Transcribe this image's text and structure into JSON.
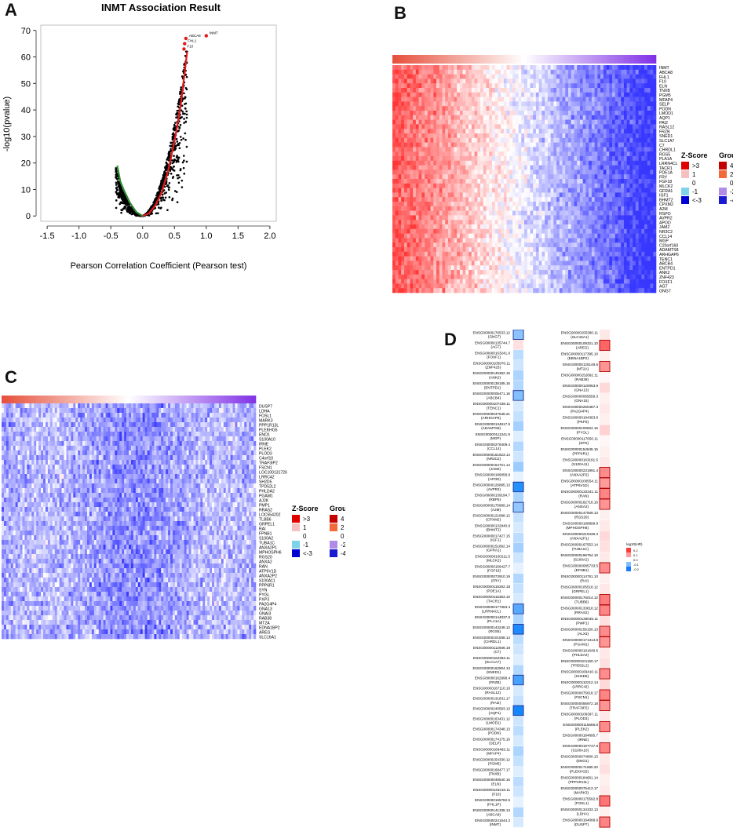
{
  "panels": {
    "a": "A",
    "b": "B",
    "c": "C",
    "d": "D"
  },
  "chart_data": [
    {
      "panel": "A",
      "type": "scatter",
      "title": "INMT Association Result",
      "xlabel": "Pearson Correlation Coefficient (Pearson test)",
      "ylabel": "-log10(pvalue)",
      "xlim": [
        -1.6,
        2.1
      ],
      "ylim": [
        -2,
        72
      ],
      "xticks": [
        -1.5,
        -1.0,
        -0.5,
        0.0,
        0.5,
        1.0,
        1.5,
        2.0
      ],
      "yticks": [
        0,
        10,
        20,
        30,
        40,
        50,
        60,
        70
      ],
      "positive_color": "#e31a1c",
      "negative_color": "#2e8b2e",
      "neutral_color": "#000000",
      "positive_envelope": {
        "x": [
          0.0,
          0.1,
          0.2,
          0.3,
          0.4,
          0.5,
          0.6,
          0.65,
          0.7
        ],
        "y": [
          0,
          1,
          4,
          9,
          17,
          28,
          42,
          52,
          62
        ]
      },
      "negative_envelope": {
        "x": [
          0.0,
          -0.1,
          -0.2,
          -0.3,
          -0.35,
          -0.4
        ],
        "y": [
          0,
          1.5,
          5,
          10,
          13,
          19
        ]
      },
      "highlighted": [
        {
          "label": "INMT",
          "x": 1.0,
          "y": 68
        },
        {
          "label": "ABCA8",
          "x": 0.68,
          "y": 67
        },
        {
          "label": "FHL1",
          "x": 0.66,
          "y": 65
        },
        {
          "label": "F10",
          "x": 0.65,
          "y": 63
        }
      ]
    },
    {
      "panel": "B",
      "type": "heatmap",
      "rows": [
        "INMT",
        "ABCA8",
        "FHL1",
        "F10",
        "ELN",
        "TNXB",
        "PGM5",
        "MFAP4",
        "SELP",
        "PODN",
        "LMOD1",
        "AQP1",
        "PAI2",
        "RASL12",
        "FRZB",
        "SNED1",
        "SLC1A7",
        "C7",
        "CHRDL1",
        "RGS5",
        "PLA1A",
        "LRRN4CL",
        "TACR1",
        "PDE1A",
        "FRY",
        "FGF18",
        "MLCK2",
        "GFRA1",
        "IGF1",
        "BHMT2",
        "CPXM2",
        "A2M",
        "RSPO",
        "AVPR2",
        "APOD",
        "JAM2",
        "NR3C2",
        "CCL14",
        "MGP",
        "C20orf160",
        "ADAMTS8",
        "ARHGAP6",
        "TENC1",
        "ABCB4",
        "ENTPD1",
        "ANK2",
        "ZNF423",
        "FOXF1",
        "AGT",
        "GNG7"
      ],
      "legend_zscore_title": "Z-Score",
      "legend_zscore": [
        ">3",
        "1",
        "0",
        "-1",
        "<-3"
      ],
      "legend_group_title": "Group",
      "legend_group": [
        "4",
        "2",
        "0",
        "-2",
        "-4"
      ],
      "pattern": "positive (red left, blue right)"
    },
    {
      "panel": "C",
      "type": "heatmap",
      "rows": [
        "DUSP7",
        "LDHA",
        "FOSL1",
        "MARK3",
        "PPP1R13L",
        "PLEKHG5",
        "ENO1",
        "S100A10",
        "IRNE",
        "PLEK2",
        "PLOD3",
        "C4orf10",
        "TRAF3IP2",
        "FSCN1",
        "LOC100131726",
        "LRRC42",
        "SH2D5",
        "TPD52L2",
        "PHLDA2",
        "PGAM1",
        "AJ2K",
        "PMP1",
        "RRAS2",
        "LOC554202",
        "TLBB6",
        "GRPEL1",
        "RAI",
        "FPNB1",
        "S100A2",
        "TUBA1C",
        "ANXA2P1",
        "MPHOSPH6",
        "RGS20",
        "ANXA2",
        "RAN",
        "ATP6V1D",
        "ANXA2P2",
        "S100A11",
        "PPP6R1",
        "SYN",
        "PYGL",
        "PXP3",
        "PA2G4P4",
        "GNA13",
        "GNAI3",
        "RAB38",
        "MT2A",
        "EDNA1BP2",
        "AREG",
        "SLC16A1"
      ],
      "legend_zscore_title": "Z-Score",
      "legend_zscore": [
        ">3",
        "1",
        "0",
        "-1",
        "<-3"
      ],
      "legend_group_title": "Group",
      "legend_group": [
        "4",
        "2",
        "0",
        "-2",
        "-4"
      ],
      "pattern": "negative (mostly blue, weak structure)"
    },
    {
      "panel": "D",
      "type": "heatmap",
      "legend_title": "log10(HR)",
      "legend_ticks": [
        "0.2",
        "0.1",
        "0.0",
        "-0.1",
        "-0.2"
      ],
      "left_column": [
        {
          "id": "ENSG00000176533.12",
          "gene": "GNG7",
          "v": -0.14
        },
        {
          "id": "ENSG00000135744.7",
          "gene": "AGT",
          "v": 0.04
        },
        {
          "id": "ENSG00000103241.6",
          "gene": "FOXF1",
          "v": -0.08
        },
        {
          "id": "ENSG00000105976.11",
          "gene": "ZNF423",
          "v": -0.06
        },
        {
          "id": "ENSG00000145362.16",
          "gene": "ANK2",
          "v": -0.1
        },
        {
          "id": "ENSG00000138185.16",
          "gene": "ENTPD1",
          "v": -0.09
        },
        {
          "id": "ENSG00000005471.16",
          "gene": "ABCB4",
          "v": -0.15
        },
        {
          "id": "ENSG00000107438.11",
          "gene": "TENC1",
          "v": -0.05
        },
        {
          "id": "ENSG00000047648.21",
          "gene": "ARHGAP6",
          "v": -0.07
        },
        {
          "id": "ENSG00000134917.9",
          "gene": "ADAMTS8",
          "v": -0.11
        },
        {
          "id": "ENSG00000111341.9",
          "gene": "MGP",
          "v": -0.04
        },
        {
          "id": "ENSG00000276409.4",
          "gene": "CCL14",
          "v": -0.09
        },
        {
          "id": "ENSG00000151623.14",
          "gene": "NR3C2",
          "v": -0.06
        },
        {
          "id": "ENSG00000154721.14",
          "gene": "JAM2",
          "v": -0.12
        },
        {
          "id": "ENSG00000189058.8",
          "gene": "APOD",
          "v": -0.03
        },
        {
          "id": "ENSG00000126895.13",
          "gene": "AVPR2",
          "v": -0.26
        },
        {
          "id": "ENSG00000139194.7",
          "gene": "RBP5",
          "v": -0.1
        },
        {
          "id": "ENSG00000175899.14",
          "gene": "A2M",
          "v": -0.13
        },
        {
          "id": "ENSG00000121898.12",
          "gene": "CPXM2",
          "v": -0.07
        },
        {
          "id": "ENSG00000132840.9",
          "gene": "BHMT2",
          "v": -0.05
        },
        {
          "id": "ENSG00000017427.15",
          "gene": "IGF1",
          "v": -0.08
        },
        {
          "id": "ENSG00000151892.14",
          "gene": "GFRA1",
          "v": -0.11
        },
        {
          "id": "ENSG00000100211.5",
          "gene": "MLCK2",
          "v": -0.06
        },
        {
          "id": "ENSG00000156427.7",
          "gene": "FGF18",
          "v": -0.03
        },
        {
          "id": "ENSG00000073910.19",
          "gene": "FRY",
          "v": -0.09
        },
        {
          "id": "ENSG00000115252.18",
          "gene": "PDE1A",
          "v": -0.07
        },
        {
          "id": "ENSG00000115353.10",
          "gene": "TACR1",
          "v": -0.05
        },
        {
          "id": "ENSG00000177363.4",
          "gene": "LRRN4CL",
          "v": -0.2
        },
        {
          "id": "ENSG00000144837.8",
          "gene": "PLA1A",
          "v": -0.1
        },
        {
          "id": "ENSG00000143248.12",
          "gene": "RGS5",
          "v": -0.27
        },
        {
          "id": "ENSG00000101938.14",
          "gene": "CHRDL1",
          "v": -0.08
        },
        {
          "id": "ENSG00000112936.19",
          "gene": "C7",
          "v": -0.06
        },
        {
          "id": "ENSG00000162383.11",
          "gene": "SLC1A7",
          "v": -0.04
        },
        {
          "id": "ENSG00000162804.13",
          "gene": "SNED1",
          "v": -0.09
        },
        {
          "id": "ENSG00000162998.4",
          "gene": "FRZB",
          "v": -0.22
        },
        {
          "id": "ENSG00000167110.10",
          "gene": "RASL12",
          "v": -0.05
        },
        {
          "id": "ENSG00000131831.17",
          "gene": "RAI2",
          "v": -0.07
        },
        {
          "id": "ENSG00000240583.13",
          "gene": "AQP1",
          "v": -0.28
        },
        {
          "id": "ENSG00000163431.12",
          "gene": "LMOD1",
          "v": -0.06
        },
        {
          "id": "ENSG00000174348.13",
          "gene": "PODN",
          "v": -0.08
        },
        {
          "id": "ENSG00000174175.16",
          "gene": "SELP",
          "v": -0.05
        },
        {
          "id": "ENSG00000166482.11",
          "gene": "MFAP4",
          "v": -0.1
        },
        {
          "id": "ENSG00000154330.12",
          "gene": "PGM5",
          "v": -0.07
        },
        {
          "id": "ENSG00000168477.17",
          "gene": "TNXB",
          "v": -0.04
        },
        {
          "id": "ENSG00000049540.16",
          "gene": "ELN",
          "v": -0.08
        },
        {
          "id": "ENSG00000126218.11",
          "gene": "F10",
          "v": -0.06
        },
        {
          "id": "ENSG00000165782.5",
          "gene": "FHL1P",
          "v": -0.03
        },
        {
          "id": "ENSG00000141338.13",
          "gene": "ABCA8",
          "v": -0.09
        },
        {
          "id": "ENSG00000241644.2",
          "gene": "INMT",
          "v": -0.05
        }
      ],
      "right_column": [
        {
          "id": "ENSG00000155380.11",
          "gene": "SLC16A1",
          "v": 0.03
        },
        {
          "id": "ENSG00000109321.10",
          "gene": "AREG",
          "v": 0.2
        },
        {
          "id": "ENSG00000117395.10",
          "gene": "EBNA1BP2",
          "v": 0.02
        },
        {
          "id": "ENSG00000125148.6",
          "gene": "MT2A",
          "v": 0.14
        },
        {
          "id": "ENSG00000152892.11",
          "gene": "RAB38",
          "v": 0.01
        },
        {
          "id": "ENSG00000120063.9",
          "gene": "GNA13",
          "v": 0.05
        },
        {
          "id": "ENSG00000065559.3",
          "gene": "GNA15",
          "v": 0.02
        },
        {
          "id": "ENSG00000250487.3",
          "gene": "PA2G4P4",
          "v": 0.03
        },
        {
          "id": "ENSG00000184363.8",
          "gene": "PKP3",
          "v": 0.02
        },
        {
          "id": "ENSG00000100504.16",
          "gene": "PYGL",
          "v": 0.06
        },
        {
          "id": "ENSG00000117650.11",
          "gene": "SFN",
          "v": 0.01
        },
        {
          "id": "ENSG00000154845.15",
          "gene": "PPP4R1",
          "v": 0.02
        },
        {
          "id": "ENSG00000163191.5",
          "gene": "S100A11",
          "v": 0.03
        },
        {
          "id": "ENSG00000231991.4",
          "gene": "ANXA2P2",
          "v": 0.15
        },
        {
          "id": "ENSG00000100554.11",
          "gene": "ATP6V1D",
          "v": 0.13
        },
        {
          "id": "ENSG00000132341.11",
          "gene": "RAN",
          "v": 0.16
        },
        {
          "id": "ENSG00000182718.16",
          "gene": "ANXA2",
          "v": 0.14
        },
        {
          "id": "ENSG00000147509.13",
          "gene": "RGS20",
          "v": 0.02
        },
        {
          "id": "ENSG00000198899.9",
          "gene": "MPHOSPH6",
          "v": 0.03
        },
        {
          "id": "ENSG00000219436.3",
          "gene": "ANXA2P1",
          "v": 0.05
        },
        {
          "id": "ENSG00000167553.14",
          "gene": "TUBA1C",
          "v": 0.04
        },
        {
          "id": "ENSG00000196754.10",
          "gene": "S100A2",
          "v": 0.03
        },
        {
          "id": "ENSG00000085733.5",
          "gene": "EFNB1",
          "v": 0.15
        },
        {
          "id": "ENSG00000114761.10",
          "gene": "RAI",
          "v": 0.02
        },
        {
          "id": "ENSG00000105518.12",
          "gene": "GRPEL1",
          "v": 0.03
        },
        {
          "id": "ENSG00000176014.12",
          "gene": "TUBB6",
          "v": 0.17
        },
        {
          "id": "ENSG00000133818.12",
          "gene": "RRAS2",
          "v": 0.16
        },
        {
          "id": "ENSG00000136045.11",
          "gene": "PWP1",
          "v": 0.04
        },
        {
          "id": "ENSG00000156150.13",
          "gene": "ALX3",
          "v": 0.15
        },
        {
          "id": "ENSG00000171314.8",
          "gene": "PGAM1",
          "v": 0.14
        },
        {
          "id": "ENSG00000181649.5",
          "gene": "PHLDA2",
          "v": 0.03
        },
        {
          "id": "ENSG00000101150.17",
          "gene": "TPD52L2",
          "v": 0.04
        },
        {
          "id": "ENSG00000169410.11",
          "gene": "SH2D5",
          "v": 0.15
        },
        {
          "id": "ENSG00000110212.14",
          "gene": "LRRC42",
          "v": 0.05
        },
        {
          "id": "ENSG00000075618.17",
          "gene": "FSCN1",
          "v": 0.16
        },
        {
          "id": "ENSG00000056972.18",
          "gene": "TRAF3IP2",
          "v": 0.14
        },
        {
          "id": "ENSG00000106397.11",
          "gene": "PLOD3",
          "v": 0.03
        },
        {
          "id": "ENSG00000115556.8",
          "gene": "PLEK2",
          "v": 0.15
        },
        {
          "id": "ENSG00000184895.7",
          "gene": "IRNE",
          "v": 0.02
        },
        {
          "id": "ENSG00000197747.8",
          "gene": "S100A10",
          "v": 0.16
        },
        {
          "id": "ENSG00000074800.13",
          "gene": "ENO1",
          "v": 0.03
        },
        {
          "id": "ENSG00000171680.20",
          "gene": "PLEKHG5",
          "v": 0.04
        },
        {
          "id": "ENSG00000184661.14",
          "gene": "PPP1R13L",
          "v": 0.02
        },
        {
          "id": "ENSG00000075413.17",
          "gene": "MARK3",
          "v": 0.03
        },
        {
          "id": "ENSG00000175592.8",
          "gene": "FOSL1",
          "v": 0.18
        },
        {
          "id": "ENSG00000134333.13",
          "gene": "LDHA",
          "v": 0.02
        },
        {
          "id": "ENSG00000164068.6",
          "gene": "DUSP7",
          "v": 0.16
        }
      ]
    }
  ]
}
